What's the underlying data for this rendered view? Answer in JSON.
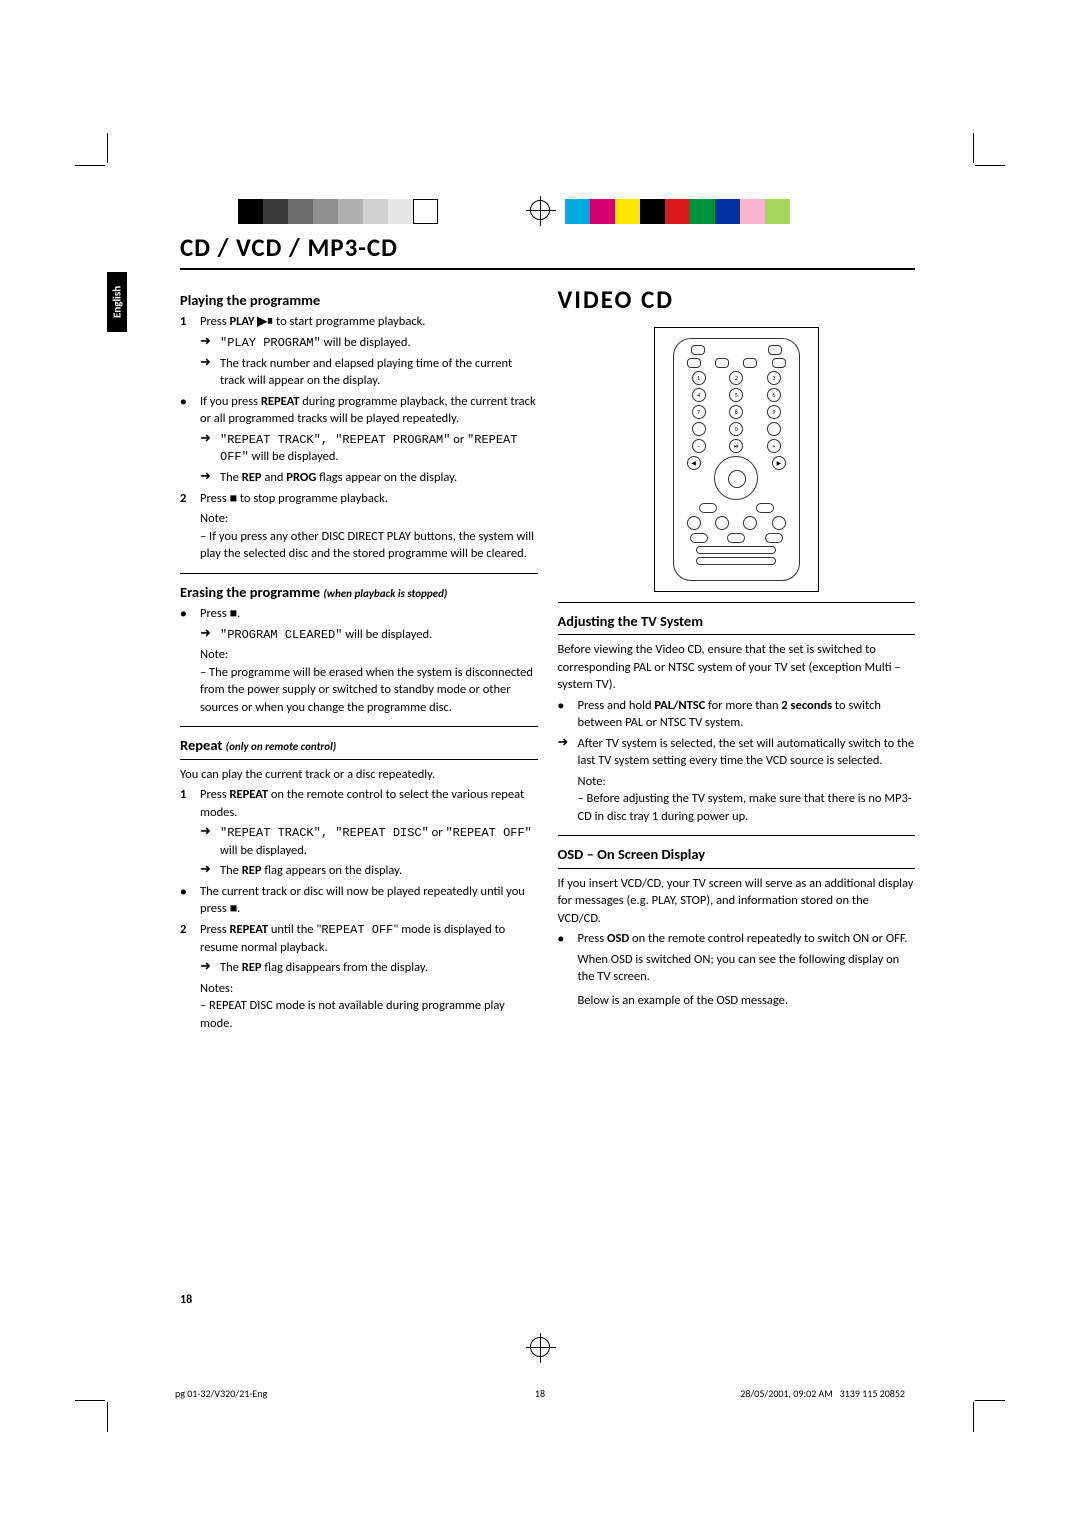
{
  "colors": {
    "bar_left": [
      "#000000",
      "#3a3a3a",
      "#6b6b6b",
      "#8f8f8f",
      "#b0b0b0",
      "#cfcfcf",
      "#e6e6e6",
      "#ffffff"
    ],
    "bar_right": [
      "#00a9e0",
      "#d4006e",
      "#ffe500",
      "#000000",
      "#d91b1b",
      "#00933b",
      "#0033a0",
      "#f9b5d0",
      "#a4d65e"
    ]
  },
  "lang_tab": "English",
  "main_title": "CD / VCD / MP3-CD",
  "video_title": "VIDEO CD",
  "left": {
    "h1": "Playing the programme",
    "l1_pre": "Press ",
    "l1_b": "PLAY ▶⏸",
    "l1_post": " to start programme playback.",
    "l2a": "\"PLAY PROGRAM\"",
    "l2b": " will be displayed.",
    "l3": "The track number and elapsed playing time of the current track will appear on the display.",
    "l4_pre": "If you press ",
    "l4_b": "REPEAT",
    "l4_post": " during programme playback, the current track or all programmed tracks will be played repeatedly.",
    "l5a": "\"REPEAT TRACK\", \"REPEAT PROGRAM\"",
    "l5b": " or ",
    "l5c": "\"REPEAT OFF\"",
    "l5d": " will be displayed.",
    "l6_pre": "The ",
    "l6_b1": "REP",
    "l6_mid": " and ",
    "l6_b2": "PROG",
    "l6_post": " flags appear on the display.",
    "l7": "Press ■ to stop programme playback.",
    "note1": "Note:",
    "note1_body": "– If you press any other DISC DIRECT PLAY buttons, the system will play the selected disc and the stored programme will be cleared.",
    "h2a": "Erasing the programme",
    "h2b": "(when playback is stopped)",
    "e1": "Press ■.",
    "e2a": "\"PROGRAM CLEARED\"",
    "e2b": " will be displayed.",
    "note2": "Note:",
    "note2_body": "– The programme will be erased when the system is disconnected from the power supply or switched to standby mode or other sources or when you change the programme disc.",
    "h3a": "Repeat",
    "h3b": "(only on remote control)",
    "r0": "You can play the current track or a disc repeatedly.",
    "r1_pre": "Press ",
    "r1_b": "REPEAT",
    "r1_post": " on the remote control to select the various repeat modes.",
    "r2a": "\"REPEAT TRACK\", \"REPEAT DISC\"",
    "r2b": " or ",
    "r2c": "\"REPEAT OFF\"",
    "r2d": " will be displayed.",
    "r3_pre": "The ",
    "r3_b": "REP",
    "r3_post": " flag appears on the display.",
    "r4": "The current track or disc will now be played repeatedly until you press ■.",
    "r5_pre": "Press ",
    "r5_b": "REPEAT",
    "r5_mid": " until the \"",
    "r5_lcd": "REPEAT OFF",
    "r5_post": "\" mode is displayed to resume normal playback.",
    "r6_pre": "The ",
    "r6_b": "REP",
    "r6_post": " flag disappears from the display.",
    "notes3": "Notes:",
    "notes3_body": "– REPEAT DISC mode is not available during programme play mode."
  },
  "right": {
    "h1": "Adjusting the TV System",
    "a0": "Before viewing the Video CD, ensure that the set is switched to corresponding PAL or NTSC system of your TV set (exception Multi – system TV).",
    "a1_pre": "Press and hold ",
    "a1_b": "PAL/NTSC",
    "a1_mid": " for more than ",
    "a1_b2": "2 seconds",
    "a1_post": " to switch between PAL or NTSC TV system.",
    "a2": "After TV system is selected, the set will automatically switch to the last TV system setting every time the VCD source is selected.",
    "noteA": "Note:",
    "noteA_body": "– Before adjusting the TV system, make sure that there is no MP3-CD in disc tray 1 during power up.",
    "h2": "OSD – On Screen Display",
    "o0": "If you insert VCD/CD, your TV screen will serve as an additional display for messages (e.g. PLAY, STOP), and information stored on the VCD/CD.",
    "o1_pre": "Press ",
    "o1_b": "OSD",
    "o1_post": " on the remote control repeatedly to switch ON or OFF.",
    "o2": "When OSD is switched ON; you can see the following display on the TV screen.",
    "o3": "Below is an example of the OSD message."
  },
  "page_num": "18",
  "footer": {
    "left": "pg 01-32/V320/21-Eng",
    "mid": "18",
    "right_a": "28/05/2001, 09:02 AM",
    "right_b": "3139 115 20852"
  },
  "remote_numpad": [
    "1",
    "2",
    "3",
    "4",
    "5",
    "6",
    "7",
    "8",
    "9",
    "",
    "0",
    ""
  ]
}
